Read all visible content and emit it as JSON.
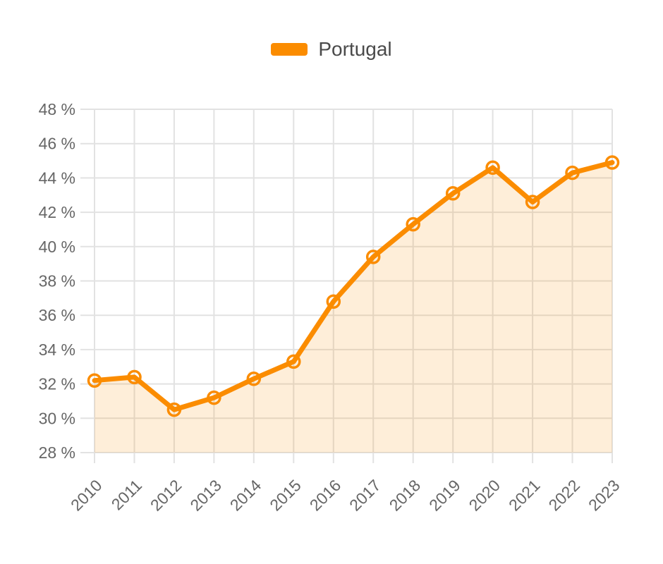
{
  "chart_data": {
    "type": "line",
    "title": "",
    "xlabel": "",
    "ylabel": "",
    "x": [
      "2010",
      "2011",
      "2012",
      "2013",
      "2014",
      "2015",
      "2016",
      "2017",
      "2018",
      "2019",
      "2020",
      "2021",
      "2022",
      "2023"
    ],
    "series": [
      {
        "name": "Portugal",
        "values": [
          32.2,
          32.4,
          30.5,
          31.2,
          32.3,
          33.3,
          36.8,
          39.4,
          41.3,
          43.1,
          44.6,
          42.6,
          44.3,
          44.9
        ],
        "color": "#fb8c00",
        "fill_opacity": 0.15,
        "marker": "open-circle",
        "area": true
      }
    ],
    "ylim": [
      28,
      48
    ],
    "y_tick_step": 2,
    "y_tick_suffix": " %",
    "y_tick_labels": [
      "28 %",
      "30 %",
      "32 %",
      "34 %",
      "36 %",
      "38 %",
      "40 %",
      "42 %",
      "44 %",
      "46 %",
      "48 %"
    ],
    "grid": true,
    "legend_position": "top-center",
    "grid_color": "#e2e2e2",
    "tick_label_color": "#666666",
    "legend_text_color": "#4a4a4a"
  }
}
